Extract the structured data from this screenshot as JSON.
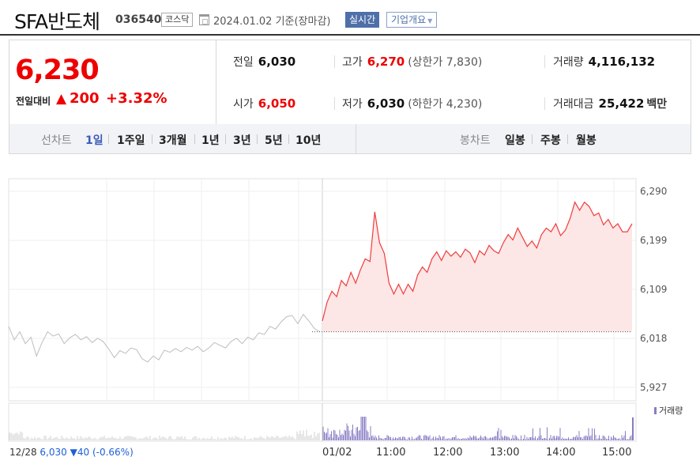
{
  "header": {
    "name": "SFA반도체",
    "code": "036540",
    "market": "코스닥",
    "base_date": "2024.01.02  기준(장마감)",
    "realtime_label": "실시간",
    "company_label": "기업개요"
  },
  "price": {
    "current": "6,230",
    "change_label": "전일대비",
    "change_arrow": "▲",
    "change_value": "200",
    "change_rate": "+3.32%"
  },
  "summary": {
    "prev_close_label": "전일",
    "prev_close": "6,030",
    "open_label": "시가",
    "open": "6,050",
    "high_label": "고가",
    "high": "6,270",
    "upper_limit": "(상한가 7,830)",
    "low_label": "저가",
    "low": "6,030",
    "lower_limit": "(하한가 4,230)",
    "volume_label": "거래량",
    "volume": "4,116,132",
    "amount_label": "거래대금",
    "amount": "25,422",
    "amount_unit": "백만"
  },
  "tabs": {
    "line_label": "선차트",
    "line": [
      "1일",
      "1주일",
      "3개월",
      "1년",
      "3년",
      "5년",
      "10년"
    ],
    "active": "1일",
    "candle_label": "봉차트",
    "candle": [
      "일봉",
      "주봉",
      "월봉"
    ]
  },
  "chart": {
    "y_ticks": [
      "6,290",
      "6,199",
      "6,109",
      "6,018",
      "5,927"
    ],
    "x_ticks": [
      "01/02",
      "11:00",
      "12:00",
      "13:00",
      "14:00",
      "15:00"
    ],
    "prev_day": {
      "date": "12/28",
      "price": "6,030",
      "arrow": "▼",
      "change": "40",
      "rate": "(-0.66%)"
    },
    "volume_legend": "거래량",
    "colors": {
      "up": "#f03c3c",
      "up_fill": "#fde6e6",
      "prev": "#bdbdbd",
      "volume": "#8a7cc4"
    }
  },
  "chart_data": {
    "type": "line",
    "ylim": [
      5927,
      6290
    ],
    "reference_price": 6030,
    "series": [
      {
        "values_prev_day": [
          6040,
          6015,
          6030,
          6008,
          6020,
          5985,
          6010,
          6030,
          6022,
          6026,
          6008,
          6019,
          6025,
          6015,
          6021,
          6010,
          6018,
          6012,
          5998,
          5982,
          5995,
          5990,
          6000,
          5997,
          5980,
          5974,
          5985,
          5978,
          5996,
          5992,
          5999,
          5993,
          6001,
          5996,
          6003,
          5993,
          6000,
          6010,
          6005,
          6000,
          6012,
          6018,
          6008,
          6020,
          6015,
          6028,
          6025,
          6040,
          6035,
          6048,
          6058,
          6060,
          6045,
          6062,
          6050,
          6036,
          6030
        ]
      },
      {
        "values_today": [
          6050,
          6085,
          6105,
          6095,
          6125,
          6115,
          6140,
          6120,
          6145,
          6165,
          6160,
          6252,
          6195,
          6175,
          6120,
          6100,
          6118,
          6100,
          6118,
          6105,
          6135,
          6150,
          6140,
          6165,
          6178,
          6162,
          6180,
          6170,
          6178,
          6168,
          6183,
          6176,
          6158,
          6180,
          6172,
          6190,
          6180,
          6175,
          6195,
          6210,
          6200,
          6222,
          6205,
          6188,
          6198,
          6185,
          6210,
          6222,
          6215,
          6230,
          6208,
          6218,
          6240,
          6270,
          6255,
          6270,
          6262,
          6245,
          6250,
          6228,
          6238,
          6222,
          6230,
          6215,
          6215,
          6230
        ]
      }
    ]
  }
}
